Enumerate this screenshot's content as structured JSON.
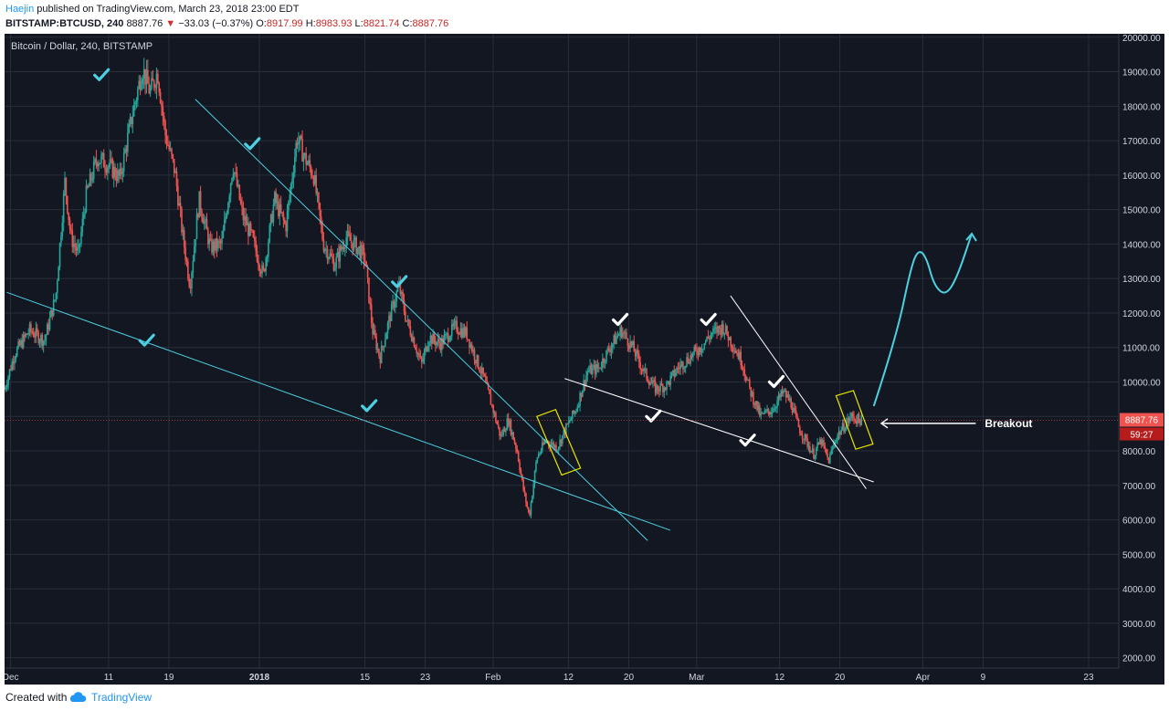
{
  "header": {
    "author": "Haejin",
    "published": "published on TradingView.com, March 23, 2018 23:00 EDT",
    "symbol": "BITSTAMP:BTCUSD, 240",
    "last": "8887.76",
    "change": "−33.03 (−0.37%)",
    "open_label": "O:",
    "open": "8917.99",
    "high_label": "H:",
    "high": "8983.93",
    "low_label": "L:",
    "low": "8821.74",
    "close_label": "C:",
    "close": "8887.76"
  },
  "footer": {
    "created_with": "Created with",
    "brand": "TradingView"
  },
  "colors": {
    "background": "#131722",
    "up": "#26a69a",
    "down": "#ef5350",
    "trendline_cyan": "#4dd0e1",
    "trendline_white": "#ffffff",
    "box_yellow": "#e6e600",
    "price_tag": "#ef5350"
  },
  "chart_data": {
    "type": "candlestick",
    "title": "Bitcoin / Dollar, 240, BITSTAMP",
    "ylim": [
      1700,
      20100
    ],
    "y_ticks": [
      2000,
      3000,
      4000,
      5000,
      6000,
      7000,
      8000,
      9000,
      10000,
      11000,
      12000,
      13000,
      14000,
      15000,
      16000,
      17000,
      18000,
      19000,
      20000
    ],
    "y_tick_labels": [
      "2000.00",
      "3000.00",
      "4000.00",
      "5000.00",
      "6000.00",
      "7000.00",
      "8000.00",
      "9000.00",
      "10000.00",
      "11000.00",
      "12000.00",
      "13000.00",
      "14000.00",
      "15000.00",
      "16000.00",
      "17000.00",
      "18000.00",
      "19000.00",
      "20000.00"
    ],
    "x_ticks": [
      {
        "day": -2,
        "label": "Dec"
      },
      {
        "day": 11,
        "label": "11"
      },
      {
        "day": 19,
        "label": "19"
      },
      {
        "day": 31,
        "label": "2018"
      },
      {
        "day": 45,
        "label": "15"
      },
      {
        "day": 53,
        "label": "23"
      },
      {
        "day": 62,
        "label": "Feb"
      },
      {
        "day": 72,
        "label": "12"
      },
      {
        "day": 80,
        "label": "20"
      },
      {
        "day": 89,
        "label": "Mar"
      },
      {
        "day": 100,
        "label": "12"
      },
      {
        "day": 108,
        "label": "20"
      },
      {
        "day": 119,
        "label": "Apr"
      },
      {
        "day": 127,
        "label": "9"
      },
      {
        "day": 141,
        "label": "23"
      }
    ],
    "x_range_days": [
      -2.8,
      145
    ],
    "close_path": [
      [
        -2.8,
        9800
      ],
      [
        -1.5,
        10800
      ],
      [
        0.5,
        11500
      ],
      [
        2.5,
        11200
      ],
      [
        4,
        12500
      ],
      [
        5.2,
        15800
      ],
      [
        6,
        14200
      ],
      [
        7,
        13700
      ],
      [
        8,
        15400
      ],
      [
        9.5,
        16500
      ],
      [
        11,
        16300
      ],
      [
        12.5,
        15900
      ],
      [
        14,
        17600
      ],
      [
        15.5,
        19100
      ],
      [
        16.5,
        18400
      ],
      [
        17.5,
        19000
      ],
      [
        18.5,
        17200
      ],
      [
        19.8,
        16100
      ],
      [
        20.8,
        14300
      ],
      [
        21.8,
        12800
      ],
      [
        23,
        15300
      ],
      [
        24.5,
        13900
      ],
      [
        26,
        14000
      ],
      [
        27.5,
        16300
      ],
      [
        28.8,
        14800
      ],
      [
        30,
        14200
      ],
      [
        31.5,
        13100
      ],
      [
        33,
        15300
      ],
      [
        34.5,
        14500
      ],
      [
        36,
        17100
      ],
      [
        37,
        16500
      ],
      [
        38.2,
        16000
      ],
      [
        39.5,
        14000
      ],
      [
        41,
        13400
      ],
      [
        42.5,
        14200
      ],
      [
        44,
        13900
      ],
      [
        45,
        13600
      ],
      [
        46,
        11500
      ],
      [
        47,
        10700
      ],
      [
        48.2,
        11800
      ],
      [
        49.5,
        12800
      ],
      [
        50.5,
        11800
      ],
      [
        51.5,
        11200
      ],
      [
        52.5,
        10500
      ],
      [
        53.5,
        11300
      ],
      [
        55,
        11100
      ],
      [
        57,
        11600
      ],
      [
        58.5,
        11400
      ],
      [
        59.5,
        10800
      ],
      [
        60.8,
        10100
      ],
      [
        62,
        9200
      ],
      [
        63,
        8400
      ],
      [
        64,
        8900
      ],
      [
        65.2,
        8000
      ],
      [
        66,
        6900
      ],
      [
        66.8,
        6100
      ],
      [
        67.8,
        7800
      ],
      [
        69,
        8300
      ],
      [
        70.5,
        8100
      ],
      [
        72,
        8800
      ],
      [
        73,
        9200
      ],
      [
        74.5,
        10300
      ],
      [
        76,
        10400
      ],
      [
        77.5,
        11000
      ],
      [
        79,
        11500
      ],
      [
        80.5,
        11000
      ],
      [
        82,
        10300
      ],
      [
        83.5,
        9800
      ],
      [
        85,
        9900
      ],
      [
        86.5,
        10400
      ],
      [
        88,
        10700
      ],
      [
        89.5,
        11000
      ],
      [
        91,
        11400
      ],
      [
        92.5,
        11600
      ],
      [
        94,
        11000
      ],
      [
        95,
        10600
      ],
      [
        96,
        9800
      ],
      [
        97.5,
        9000
      ],
      [
        99,
        9200
      ],
      [
        100.5,
        9700
      ],
      [
        101.5,
        9400
      ],
      [
        102.5,
        8700
      ],
      [
        103.5,
        8300
      ],
      [
        104.5,
        7900
      ],
      [
        105.5,
        8300
      ],
      [
        106.5,
        7700
      ],
      [
        107.5,
        8400
      ],
      [
        108.5,
        8700
      ],
      [
        109.5,
        9000
      ],
      [
        110.5,
        8900
      ],
      [
        111,
        8888
      ]
    ],
    "last_price": 8887.76,
    "last_price_label": "8887.76",
    "countdown_label": "59:27",
    "trendlines_cyan": [
      [
        [
          -2.5,
          12600
        ],
        [
          85.5,
          5700
        ]
      ],
      [
        [
          22.5,
          18200
        ],
        [
          82.5,
          5400
        ]
      ]
    ],
    "trendlines_white": [
      [
        [
          71.5,
          10100
        ],
        [
          112.5,
          7100
        ]
      ],
      [
        [
          93.5,
          12500
        ],
        [
          111.5,
          6900
        ]
      ]
    ],
    "highlight_boxes": [
      {
        "corners": [
          [
            67.8,
            9000
          ],
          [
            70.3,
            9200
          ],
          [
            73.6,
            7500
          ],
          [
            71.1,
            7300
          ]
        ]
      },
      {
        "corners": [
          [
            107.5,
            9600
          ],
          [
            109.8,
            9750
          ],
          [
            112.4,
            8200
          ],
          [
            110.1,
            8050
          ]
        ]
      }
    ],
    "checkmarks_cyan": [
      [
        10,
        18900
      ],
      [
        16,
        11200
      ],
      [
        30,
        16900
      ],
      [
        45.5,
        9300
      ],
      [
        49.5,
        12900
      ]
    ],
    "checkmarks_white": [
      [
        78.8,
        11800
      ],
      [
        83.2,
        9000
      ],
      [
        90.5,
        11800
      ],
      [
        95.7,
        8300
      ],
      [
        99.5,
        10000
      ]
    ],
    "projection_path": [
      [
        112.5,
        9300
      ],
      [
        115.5,
        11300
      ],
      [
        117.5,
        13400
      ],
      [
        118.5,
        13850
      ],
      [
        119.5,
        13600
      ],
      [
        120.5,
        12800
      ],
      [
        122,
        12500
      ],
      [
        123.5,
        13000
      ],
      [
        125.5,
        14300
      ]
    ],
    "annotation": {
      "text": "Breakout",
      "arrow_from": [
        119,
        8800
      ],
      "arrow_to": [
        113.5,
        8800
      ]
    }
  }
}
